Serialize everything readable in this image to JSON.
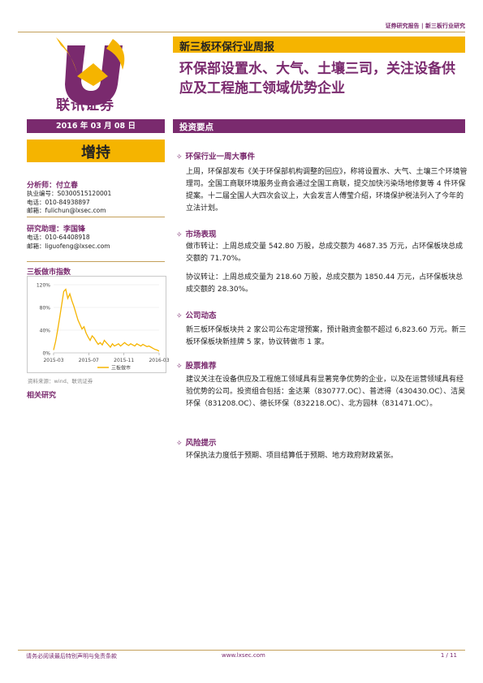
{
  "header": {
    "tag": "证券研究报告 | 新三板行业研究"
  },
  "logo": {
    "text": "联讯证券"
  },
  "report": {
    "type": "新三板环保行业周报",
    "title": "环保部设置水、大气、土壤三司，关注设备供应及工程施工领域优势企业"
  },
  "date": "2016 年 03 月 08 日",
  "rating": "增持",
  "analyst": {
    "label": "分析师：付立春",
    "reg": "执业编号：S0300515120001",
    "tel": "电话：010-84938897",
    "email": "邮箱：fulichun@lxsec.com"
  },
  "assistant": {
    "label": "研究助理：李国锋",
    "tel": "电话：010-64408918",
    "email": "邮箱：liguofeng@lxsec.com"
  },
  "sidebar": {
    "chart_title": "三板做市指数",
    "source": "资料来源：wind、联讯证券",
    "related": "相关研究"
  },
  "chart_data": {
    "type": "line",
    "title": "",
    "x_ticks": [
      "2015-03",
      "2015-07",
      "2015-11",
      "2016-03"
    ],
    "y_ticks": [
      "0%",
      "40%",
      "80%",
      "120%"
    ],
    "ylim": [
      0,
      120
    ],
    "series": [
      {
        "name": "三板做市",
        "color": "#f5b400",
        "x": [
          0,
          1,
          2,
          3,
          4,
          5,
          6,
          7,
          8,
          9,
          10,
          11,
          12,
          13,
          14,
          15,
          16,
          17,
          18,
          19,
          20,
          21,
          22,
          23,
          24,
          25,
          26,
          27,
          28,
          29,
          30,
          31,
          32,
          33,
          34,
          35,
          36,
          37,
          38,
          39,
          40,
          41,
          42,
          43,
          44,
          45,
          46,
          47,
          48,
          49,
          50,
          51,
          52
        ],
        "y": [
          5,
          20,
          40,
          62,
          85,
          108,
          112,
          96,
          104,
          92,
          82,
          70,
          58,
          50,
          42,
          46,
          35,
          28,
          22,
          30,
          26,
          20,
          15,
          18,
          14,
          22,
          18,
          14,
          10,
          16,
          12,
          14,
          16,
          12,
          15,
          18,
          15,
          13,
          16,
          14,
          12,
          16,
          14,
          12,
          15,
          13,
          11,
          12,
          10,
          8,
          6,
          5,
          3
        ]
      }
    ]
  },
  "section": {
    "title": "投资要点"
  },
  "points": [
    {
      "heading": "环保行业一周大事件",
      "paras": [
        "上周，环保部发布《关于环保部机构调整的回应》，称将设置水、大气、土壤三个环境管理司。全国工商联环境服务业商会通过全国工商联，提交加快污染场地修复等 4 件环保提案。十二届全国人大四次会议上，大会发言人傅莹介绍，环境保护税法列入了今年的立法计划。"
      ]
    },
    {
      "heading": "市场表现",
      "paras": [
        "做市转让：上周总成交量 542.80 万股，总成交额为 4687.35 万元，占环保板块总成交额的 71.70%。",
        "协议转让：上周总成交量为 218.60 万股，总成交额为 1850.44 万元，占环保板块总成交额的 28.30%。"
      ]
    },
    {
      "heading": "公司动态",
      "paras": [
        "新三板环保板块共 2 家公司公布定增预案，预计融资金额不超过 6,823.60 万元。新三板环保板块新挂牌 5 家，协议转做市 1 家。"
      ]
    },
    {
      "heading": "股票推荐",
      "paras": [
        "建议关注在设备供应及工程施工领域具有显著竞争优势的企业，以及在运营领域具有经验优势的公司。投资组合包括：金达莱（830777.OC）、普滤得（430430.OC）、洁昊环保（831208.OC）、德长环保（832218.OC）、北方园林（831471.OC）。"
      ]
    },
    {
      "heading": "风险提示",
      "paras": [
        "环保执法力度低于预期、项目结算低于预期、地方政府财政紧张。"
      ]
    }
  ],
  "footer": {
    "disclaimer": "请务必阅读最后特别声明与免责条款",
    "website": "www.lxsec.com",
    "page": "1 / 11"
  }
}
